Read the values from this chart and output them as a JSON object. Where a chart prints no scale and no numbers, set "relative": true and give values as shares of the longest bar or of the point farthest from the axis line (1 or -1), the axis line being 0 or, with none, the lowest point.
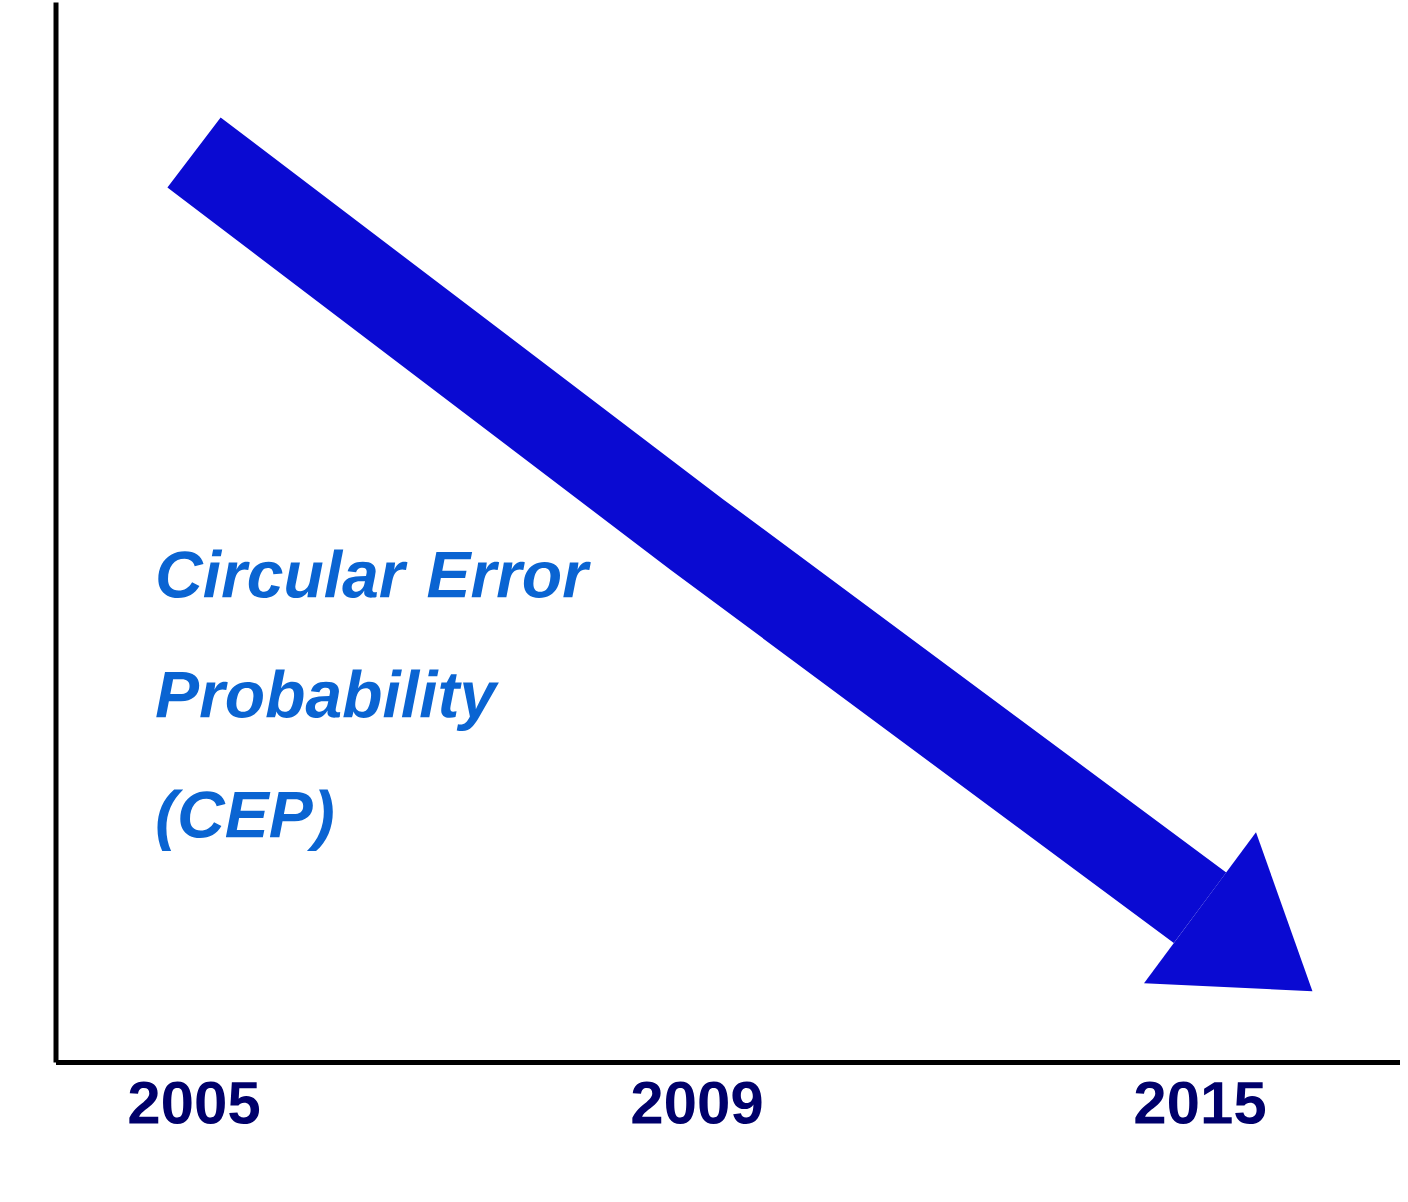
{
  "chart_data": {
    "type": "line",
    "relative": true,
    "ylabel": "Circular Error Probability (CEP)",
    "categories": [
      "2005",
      "2009",
      "2015"
    ],
    "series": [
      {
        "color": "#0a0ad2",
        "values": [
          1,
          0.58,
          0.17
        ]
      }
    ],
    "line_style": "solid",
    "marker": "none"
  }
}
